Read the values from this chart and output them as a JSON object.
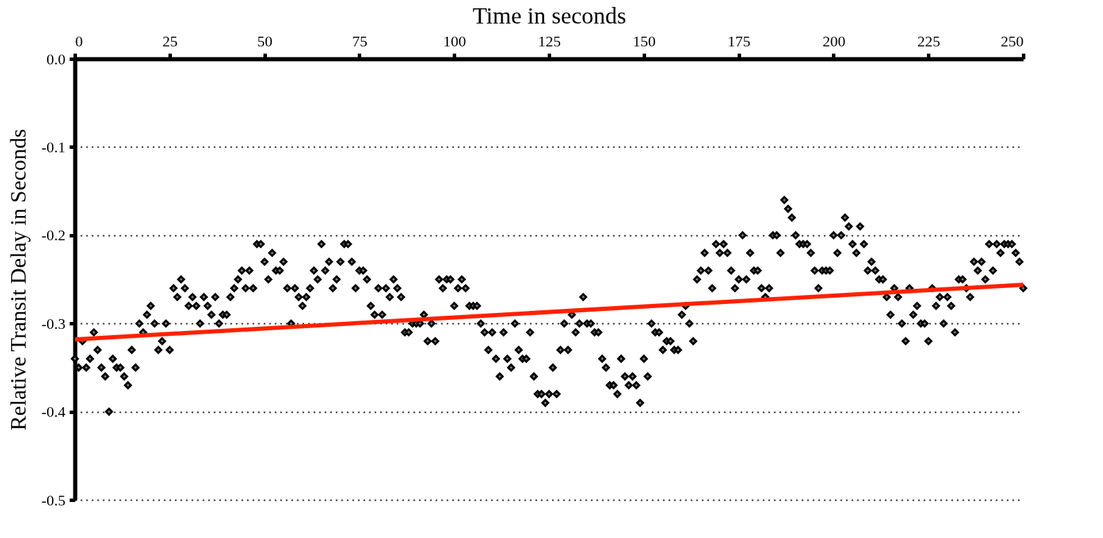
{
  "chart_data": {
    "type": "scatter",
    "xlabel": "Time in seconds",
    "ylabel": "Relative Transit Delay in Seconds",
    "xlim": [
      0,
      250
    ],
    "xticks": [
      0,
      25,
      50,
      75,
      100,
      125,
      150,
      175,
      200,
      225,
      250
    ],
    "ylim": [
      -0.5,
      0
    ],
    "yticks": [
      -0.5,
      -0.4,
      -0.3,
      -0.2,
      -0.1,
      {
        "value": 0,
        "label": "0.0"
      }
    ],
    "grid": "y",
    "series": [
      {
        "marker": "diamond",
        "color": "#808080",
        "x": [
          0,
          1,
          2,
          3,
          4,
          5,
          6,
          7,
          8,
          9,
          10,
          11,
          12,
          13,
          14,
          15,
          16,
          17,
          18,
          19,
          20,
          21,
          22,
          23,
          24,
          25,
          26,
          27,
          28,
          29,
          30,
          31,
          32,
          33,
          34,
          35,
          36,
          37,
          38,
          39,
          40,
          41,
          42,
          43,
          44,
          45,
          46,
          47,
          48,
          49,
          50,
          51,
          52,
          53,
          54,
          55,
          56,
          57,
          58,
          59,
          60,
          61,
          62,
          63,
          64,
          65,
          66,
          67,
          68,
          69,
          70,
          71,
          72,
          73,
          74,
          75,
          76,
          77,
          78,
          79,
          80,
          81,
          82,
          83,
          84,
          85,
          86,
          87,
          88,
          89,
          90,
          91,
          92,
          93,
          94,
          95,
          96,
          97,
          98,
          99,
          100,
          101,
          102,
          103,
          104,
          105,
          106,
          107,
          108,
          109,
          110,
          111,
          112,
          113,
          114,
          115,
          116,
          117,
          118,
          119,
          120,
          121,
          122,
          123,
          124,
          125,
          126,
          127,
          128,
          129,
          130,
          131,
          132,
          133,
          134,
          135,
          136,
          137,
          138,
          139,
          140,
          141,
          142,
          143,
          144,
          145,
          146,
          147,
          148,
          149,
          150,
          151,
          152,
          153,
          154,
          155,
          156,
          157,
          158,
          159,
          160,
          161,
          162,
          163,
          164,
          165,
          166,
          167,
          168,
          169,
          170,
          171,
          172,
          173,
          174,
          175,
          176,
          177,
          178,
          179,
          180,
          181,
          182,
          183,
          184,
          185,
          186,
          187,
          188,
          189,
          190,
          191,
          192,
          193,
          194,
          195,
          196,
          197,
          198,
          199,
          200,
          201,
          202,
          203,
          204,
          205,
          206,
          207,
          208,
          209,
          210,
          211,
          212,
          213,
          214,
          215,
          216,
          217,
          218,
          219,
          220,
          221,
          222,
          223,
          224,
          225,
          226,
          227,
          228,
          229,
          230,
          231,
          232,
          233,
          234,
          235,
          236,
          237,
          238,
          239,
          240,
          241,
          242,
          243,
          244,
          245,
          246,
          247,
          248,
          249,
          250
        ],
        "values": [
          -0.34,
          -0.35,
          -0.32,
          -0.35,
          -0.34,
          -0.31,
          -0.33,
          -0.35,
          -0.36,
          -0.4,
          -0.34,
          -0.35,
          -0.35,
          -0.36,
          -0.37,
          -0.33,
          -0.35,
          -0.3,
          -0.31,
          -0.29,
          -0.28,
          -0.3,
          -0.33,
          -0.32,
          -0.3,
          -0.33,
          -0.26,
          -0.27,
          -0.25,
          -0.26,
          -0.28,
          -0.27,
          -0.28,
          -0.3,
          -0.27,
          -0.28,
          -0.29,
          -0.27,
          -0.3,
          -0.29,
          -0.29,
          -0.27,
          -0.26,
          -0.25,
          -0.24,
          -0.26,
          -0.24,
          -0.26,
          -0.21,
          -0.21,
          -0.23,
          -0.25,
          -0.22,
          -0.24,
          -0.24,
          -0.23,
          -0.26,
          -0.3,
          -0.26,
          -0.27,
          -0.28,
          -0.27,
          -0.26,
          -0.24,
          -0.25,
          -0.21,
          -0.24,
          -0.23,
          -0.26,
          -0.25,
          -0.23,
          -0.21,
          -0.21,
          -0.23,
          -0.26,
          -0.24,
          -0.24,
          -0.25,
          -0.28,
          -0.29,
          -0.26,
          -0.29,
          -0.26,
          -0.27,
          -0.25,
          -0.26,
          -0.27,
          -0.31,
          -0.31,
          -0.3,
          -0.3,
          -0.3,
          -0.29,
          -0.32,
          -0.3,
          -0.32,
          -0.25,
          -0.26,
          -0.25,
          -0.25,
          -0.28,
          -0.26,
          -0.25,
          -0.26,
          -0.28,
          -0.28,
          -0.28,
          -0.3,
          -0.31,
          -0.33,
          -0.31,
          -0.34,
          -0.36,
          -0.31,
          -0.34,
          -0.35,
          -0.3,
          -0.33,
          -0.34,
          -0.34,
          -0.31,
          -0.36,
          -0.38,
          -0.38,
          -0.39,
          -0.38,
          -0.35,
          -0.38,
          -0.33,
          -0.3,
          -0.33,
          -0.29,
          -0.31,
          -0.3,
          -0.27,
          -0.3,
          -0.3,
          -0.31,
          -0.31,
          -0.34,
          -0.35,
          -0.37,
          -0.37,
          -0.38,
          -0.34,
          -0.36,
          -0.37,
          -0.36,
          -0.37,
          -0.39,
          -0.34,
          -0.36,
          -0.3,
          -0.31,
          -0.31,
          -0.33,
          -0.32,
          -0.32,
          -0.33,
          -0.33,
          -0.29,
          -0.28,
          -0.3,
          -0.32,
          -0.25,
          -0.24,
          -0.22,
          -0.24,
          -0.26,
          -0.21,
          -0.22,
          -0.21,
          -0.22,
          -0.24,
          -0.26,
          -0.25,
          -0.2,
          -0.25,
          -0.22,
          -0.24,
          -0.24,
          -0.26,
          -0.27,
          -0.26,
          -0.2,
          -0.2,
          -0.22,
          -0.16,
          -0.17,
          -0.18,
          -0.2,
          -0.21,
          -0.21,
          -0.21,
          -0.22,
          -0.24,
          -0.26,
          -0.24,
          -0.24,
          -0.24,
          -0.2,
          -0.22,
          -0.2,
          -0.18,
          -0.19,
          -0.21,
          -0.22,
          -0.19,
          -0.21,
          -0.24,
          -0.23,
          -0.24,
          -0.25,
          -0.25,
          -0.27,
          -0.29,
          -0.26,
          -0.27,
          -0.3,
          -0.32,
          -0.26,
          -0.29,
          -0.28,
          -0.3,
          -0.3,
          -0.32,
          -0.26,
          -0.28,
          -0.27,
          -0.3,
          -0.27,
          -0.28,
          -0.31,
          -0.25,
          -0.25,
          -0.26,
          -0.27,
          -0.23,
          -0.24,
          -0.23,
          -0.25,
          -0.21,
          -0.24,
          -0.21,
          -0.22,
          -0.21,
          -0.21,
          -0.21,
          -0.22,
          -0.23,
          -0.26
        ]
      },
      {
        "type": "line",
        "color": "#ff2200",
        "x": [
          0,
          250
        ],
        "values": [
          -0.318,
          -0.256
        ]
      }
    ]
  }
}
